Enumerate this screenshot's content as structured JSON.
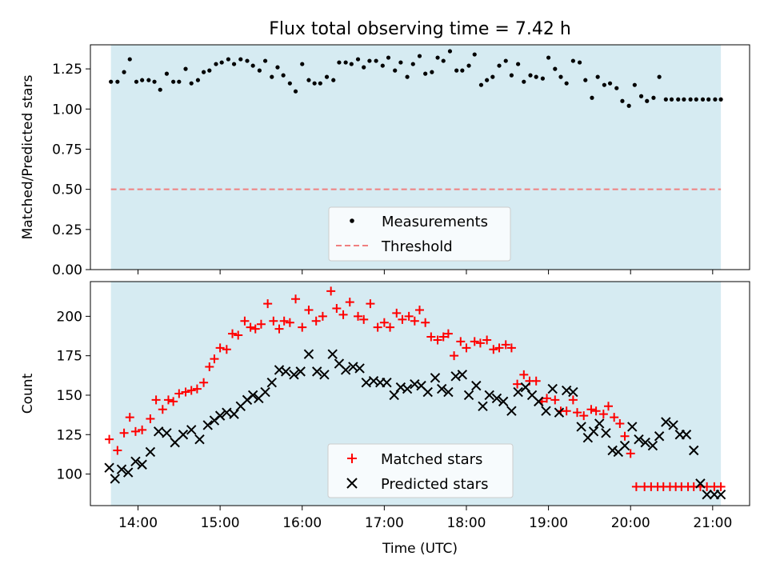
{
  "title": "Flux total observing time = 7.42 h",
  "colors": {
    "background": "#ffffff",
    "shade": "#add8e6",
    "measurement": "#000000",
    "threshold": "#f08080",
    "matched": "#ff0000",
    "predicted": "#000000"
  },
  "chart_data": [
    {
      "type": "scatter",
      "title": "Flux total observing time = 7.42 h",
      "xlabel": "",
      "ylabel": "Matched/Predicted stars",
      "xlim": [
        13.42,
        21.45
      ],
      "ylim": [
        0,
        1.4
      ],
      "yticks": [
        0.0,
        0.25,
        0.5,
        0.75,
        1.0,
        1.25
      ],
      "ytick_labels": [
        "0.00",
        "0.25",
        "0.50",
        "0.75",
        "1.00",
        "1.25"
      ],
      "xticks": [
        14,
        15,
        16,
        17,
        18,
        19,
        20,
        21
      ],
      "shaded_span": [
        13.67,
        21.1
      ],
      "threshold": 0.5,
      "legend": {
        "position": "bottom-center",
        "entries": [
          "Measurements",
          "Threshold"
        ]
      },
      "series": [
        {
          "name": "Measurements",
          "marker": "dot",
          "x": [
            13.67,
            13.75,
            13.83,
            13.9,
            13.98,
            14.05,
            14.13,
            14.2,
            14.27,
            14.35,
            14.43,
            14.5,
            14.58,
            14.65,
            14.73,
            14.8,
            14.87,
            14.95,
            15.02,
            15.1,
            15.17,
            15.25,
            15.33,
            15.4,
            15.48,
            15.55,
            15.63,
            15.7,
            15.77,
            15.85,
            15.92,
            16.0,
            16.08,
            16.15,
            16.22,
            16.3,
            16.38,
            16.45,
            16.53,
            16.6,
            16.68,
            16.75,
            16.82,
            16.9,
            16.98,
            17.05,
            17.13,
            17.2,
            17.28,
            17.35,
            17.43,
            17.5,
            17.58,
            17.65,
            17.72,
            17.8,
            17.88,
            17.95,
            18.03,
            18.1,
            18.18,
            18.25,
            18.32,
            18.4,
            18.48,
            18.55,
            18.63,
            18.7,
            18.78,
            18.85,
            18.93,
            19.0,
            19.08,
            19.15,
            19.22,
            19.3,
            19.38,
            19.45,
            19.53,
            19.6,
            19.68,
            19.75,
            19.83,
            19.9,
            19.98,
            20.05,
            20.13,
            20.2,
            20.28,
            20.35,
            20.43,
            20.5,
            20.58,
            20.65,
            20.73,
            20.8,
            20.88,
            20.95,
            21.03,
            21.1
          ],
          "y": [
            1.17,
            1.17,
            1.23,
            1.31,
            1.17,
            1.18,
            1.18,
            1.17,
            1.12,
            1.22,
            1.17,
            1.17,
            1.25,
            1.16,
            1.18,
            1.23,
            1.24,
            1.28,
            1.29,
            1.31,
            1.28,
            1.31,
            1.3,
            1.27,
            1.24,
            1.3,
            1.2,
            1.26,
            1.21,
            1.16,
            1.11,
            1.28,
            1.18,
            1.16,
            1.16,
            1.2,
            1.18,
            1.29,
            1.29,
            1.28,
            1.31,
            1.26,
            1.3,
            1.3,
            1.27,
            1.32,
            1.24,
            1.29,
            1.2,
            1.28,
            1.33,
            1.22,
            1.23,
            1.32,
            1.3,
            1.36,
            1.24,
            1.24,
            1.27,
            1.34,
            1.15,
            1.18,
            1.2,
            1.27,
            1.3,
            1.21,
            1.28,
            1.17,
            1.21,
            1.2,
            1.19,
            1.32,
            1.25,
            1.2,
            1.16,
            1.3,
            1.29,
            1.18,
            1.07,
            1.2,
            1.15,
            1.16,
            1.13,
            1.05,
            1.02,
            1.15,
            1.08,
            1.05,
            1.07,
            1.2,
            1.06,
            1.06,
            1.06,
            1.06,
            1.06,
            1.06,
            1.06,
            1.06,
            1.06,
            1.06
          ]
        },
        {
          "name": "Threshold",
          "style": "dashed",
          "x": [
            13.67,
            21.1
          ],
          "y": [
            0.5,
            0.5
          ]
        }
      ]
    },
    {
      "type": "scatter",
      "title": "",
      "xlabel": "Time (UTC)",
      "ylabel": "Count",
      "xlim": [
        13.42,
        21.45
      ],
      "ylim": [
        80,
        222
      ],
      "yticks": [
        100,
        125,
        150,
        175,
        200
      ],
      "xticks": [
        14,
        15,
        16,
        17,
        18,
        19,
        20,
        21
      ],
      "xtick_labels": [
        "14:00",
        "15:00",
        "16:00",
        "17:00",
        "18:00",
        "19:00",
        "20:00",
        "21:00"
      ],
      "shaded_span": [
        13.67,
        21.1
      ],
      "legend": {
        "position": "bottom-center",
        "entries": [
          "Matched stars",
          "Predicted stars"
        ]
      },
      "series": [
        {
          "name": "Matched stars",
          "marker": "plus",
          "x": [
            13.65,
            13.75,
            13.83,
            13.9,
            13.97,
            14.05,
            14.15,
            14.22,
            14.3,
            14.37,
            14.43,
            14.5,
            14.58,
            14.65,
            14.72,
            14.8,
            14.87,
            14.93,
            15.0,
            15.08,
            15.15,
            15.22,
            15.3,
            15.37,
            15.43,
            15.5,
            15.58,
            15.65,
            15.72,
            15.78,
            15.85,
            15.92,
            16.0,
            16.08,
            16.17,
            16.25,
            16.35,
            16.42,
            16.5,
            16.58,
            16.68,
            16.75,
            16.83,
            16.92,
            17.0,
            17.07,
            17.15,
            17.22,
            17.3,
            17.37,
            17.43,
            17.5,
            17.57,
            17.65,
            17.72,
            17.78,
            17.85,
            17.93,
            18.0,
            18.1,
            18.17,
            18.25,
            18.33,
            18.4,
            18.48,
            18.55,
            18.62,
            18.7,
            18.77,
            18.85,
            18.92,
            18.98,
            19.08,
            19.15,
            19.22,
            19.3,
            19.35,
            19.43,
            19.52,
            19.58,
            19.67,
            19.73,
            19.8,
            19.87,
            19.93,
            20.0,
            20.07,
            20.17,
            20.25,
            20.33,
            20.4,
            20.48,
            20.55,
            20.62,
            20.7,
            20.77,
            20.85,
            20.93,
            21.02,
            21.1
          ],
          "y": [
            122,
            115,
            126,
            136,
            127,
            128,
            135,
            147,
            141,
            147,
            146,
            151,
            152,
            153,
            154,
            158,
            168,
            173,
            180,
            179,
            189,
            188,
            197,
            193,
            192,
            195,
            208,
            197,
            192,
            197,
            196,
            211,
            193,
            204,
            197,
            200,
            216,
            205,
            201,
            209,
            200,
            198,
            208,
            193,
            196,
            193,
            202,
            198,
            200,
            197,
            204,
            196,
            187,
            185,
            187,
            189,
            175,
            184,
            180,
            184,
            183,
            185,
            179,
            180,
            182,
            180,
            157,
            163,
            159,
            159,
            146,
            148,
            147,
            140,
            140,
            147,
            139,
            137,
            141,
            140,
            138,
            143,
            136,
            132,
            124,
            113,
            92,
            92,
            92,
            92,
            92,
            92,
            92,
            92,
            92,
            92,
            92,
            92,
            92,
            92
          ],
          "_note": "values read to chart precision"
        },
        {
          "name": "Predicted stars",
          "marker": "x",
          "x": [
            13.65,
            13.72,
            13.8,
            13.88,
            13.97,
            14.05,
            14.15,
            14.25,
            14.35,
            14.45,
            14.55,
            14.65,
            14.75,
            14.85,
            14.93,
            15.0,
            15.08,
            15.17,
            15.25,
            15.33,
            15.4,
            15.47,
            15.55,
            15.63,
            15.72,
            15.8,
            15.9,
            15.98,
            16.08,
            16.18,
            16.27,
            16.37,
            16.45,
            16.53,
            16.62,
            16.7,
            16.78,
            16.87,
            16.95,
            17.03,
            17.12,
            17.2,
            17.28,
            17.37,
            17.45,
            17.53,
            17.62,
            17.7,
            17.78,
            17.87,
            17.95,
            18.03,
            18.12,
            18.2,
            18.28,
            18.37,
            18.45,
            18.55,
            18.63,
            18.72,
            18.8,
            18.88,
            18.97,
            19.05,
            19.13,
            19.22,
            19.3,
            19.4,
            19.48,
            19.55,
            19.62,
            19.7,
            19.78,
            19.85,
            19.93,
            20.02,
            20.1,
            20.18,
            20.27,
            20.35,
            20.43,
            20.52,
            20.6,
            20.68,
            20.77,
            20.85,
            20.93,
            21.02,
            21.1
          ],
          "y": [
            104,
            97,
            103,
            101,
            108,
            106,
            114,
            127,
            126,
            120,
            125,
            128,
            122,
            131,
            134,
            137,
            139,
            138,
            143,
            147,
            150,
            148,
            152,
            158,
            166,
            165,
            163,
            165,
            176,
            165,
            163,
            176,
            170,
            166,
            168,
            167,
            158,
            159,
            158,
            158,
            150,
            155,
            154,
            157,
            156,
            152,
            161,
            154,
            152,
            162,
            163,
            150,
            156,
            143,
            150,
            148,
            146,
            140,
            152,
            155,
            150,
            146,
            140,
            154,
            139,
            153,
            152,
            130,
            123,
            127,
            132,
            126,
            115,
            114,
            118,
            130,
            122,
            120,
            118,
            124,
            133,
            131,
            125,
            125,
            115,
            94,
            87,
            87,
            87
          ],
          "_note": "values read to chart precision"
        }
      ]
    }
  ]
}
